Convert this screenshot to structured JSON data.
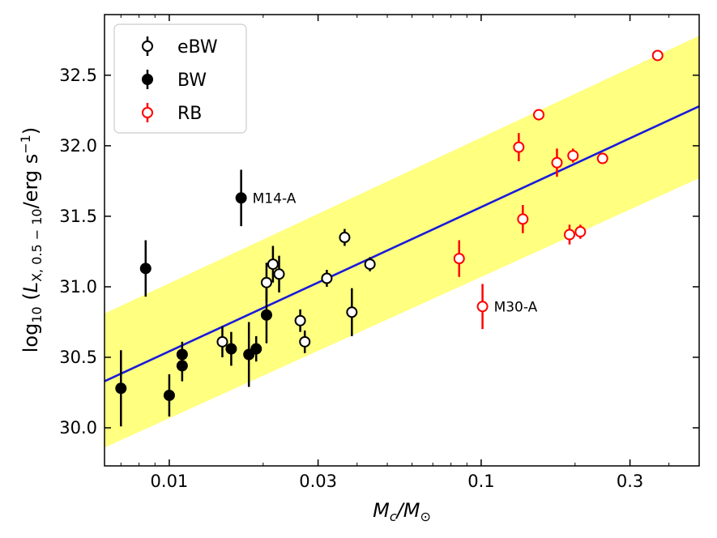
{
  "chart_data": {
    "type": "scatter",
    "xscale": "log",
    "xlim": [
      0.0062,
      0.5
    ],
    "ylim": [
      29.73,
      32.93
    ],
    "xticks": [
      {
        "value": 0.01,
        "label": "0.01"
      },
      {
        "value": 0.03,
        "label": "0.03"
      },
      {
        "value": 0.1,
        "label": "0.1"
      },
      {
        "value": 0.3,
        "label": "0.3"
      }
    ],
    "yticks": [
      {
        "value": 30.0,
        "label": "30.0"
      },
      {
        "value": 30.5,
        "label": "30.5"
      },
      {
        "value": 31.0,
        "label": "31.0"
      },
      {
        "value": 31.5,
        "label": "31.5"
      },
      {
        "value": 32.0,
        "label": "32.0"
      },
      {
        "value": 32.5,
        "label": "32.5"
      }
    ],
    "xlabel": "M_c/M_⊙",
    "ylabel": "log10 (L_X, 0.5−10/erg s−1)",
    "legend_position": "top-left",
    "fit_line": {
      "color": "#1a1adc",
      "x": [
        0.0062,
        0.5
      ],
      "y": [
        30.33,
        32.28
      ]
    },
    "fit_band": {
      "color": "#ffff80",
      "x": [
        0.0062,
        0.5
      ],
      "upper": [
        30.81,
        32.78
      ],
      "lower": [
        29.86,
        31.77
      ]
    },
    "series": [
      {
        "name": "eBW",
        "marker": "open-circle",
        "color": "#000000",
        "points": [
          {
            "x": 0.0148,
            "y": 30.61,
            "err": 0.11
          },
          {
            "x": 0.0205,
            "y": 31.03,
            "err": 0.14
          },
          {
            "x": 0.0215,
            "y": 31.16,
            "err": 0.13
          },
          {
            "x": 0.0225,
            "y": 31.09,
            "err": 0.13
          },
          {
            "x": 0.0263,
            "y": 30.76,
            "err": 0.08
          },
          {
            "x": 0.0272,
            "y": 30.61,
            "err": 0.08
          },
          {
            "x": 0.032,
            "y": 31.06,
            "err": 0.06
          },
          {
            "x": 0.0365,
            "y": 31.35,
            "err": 0.06
          },
          {
            "x": 0.0385,
            "y": 30.82,
            "err": 0.17
          },
          {
            "x": 0.044,
            "y": 31.16,
            "err": 0.05
          }
        ]
      },
      {
        "name": "BW",
        "marker": "filled-circle",
        "color": "#000000",
        "points": [
          {
            "x": 0.007,
            "y": 30.28,
            "err": 0.27
          },
          {
            "x": 0.0084,
            "y": 31.13,
            "err": 0.2
          },
          {
            "x": 0.01,
            "y": 30.23,
            "err": 0.15
          },
          {
            "x": 0.011,
            "y": 30.52,
            "err": 0.09
          },
          {
            "x": 0.011,
            "y": 30.44,
            "err": 0.11
          },
          {
            "x": 0.0158,
            "y": 30.56,
            "err": 0.12
          },
          {
            "x": 0.017,
            "y": 31.63,
            "err": 0.2
          },
          {
            "x": 0.018,
            "y": 30.52,
            "err": 0.23
          },
          {
            "x": 0.019,
            "y": 30.56,
            "err": 0.09
          },
          {
            "x": 0.0205,
            "y": 30.8,
            "err": 0.2
          }
        ]
      },
      {
        "name": "RB",
        "marker": "open-circle",
        "color": "#ff0000",
        "points": [
          {
            "x": 0.085,
            "y": 31.2,
            "err": 0.13
          },
          {
            "x": 0.101,
            "y": 30.86,
            "err": 0.16
          },
          {
            "x": 0.132,
            "y": 31.99,
            "err": 0.1
          },
          {
            "x": 0.136,
            "y": 31.48,
            "err": 0.1
          },
          {
            "x": 0.153,
            "y": 32.22,
            "err": 0.04
          },
          {
            "x": 0.175,
            "y": 31.88,
            "err": 0.1
          },
          {
            "x": 0.192,
            "y": 31.37,
            "err": 0.07
          },
          {
            "x": 0.197,
            "y": 31.93,
            "err": 0.05
          },
          {
            "x": 0.208,
            "y": 31.39,
            "err": 0.05
          },
          {
            "x": 0.245,
            "y": 31.91,
            "err": 0.04
          },
          {
            "x": 0.368,
            "y": 32.64,
            "err": 0.03
          }
        ]
      }
    ],
    "annotations": [
      {
        "text": "M14-A",
        "x": 0.017,
        "y": 31.63
      },
      {
        "text": "M30-A",
        "x": 0.101,
        "y": 30.86
      }
    ]
  }
}
